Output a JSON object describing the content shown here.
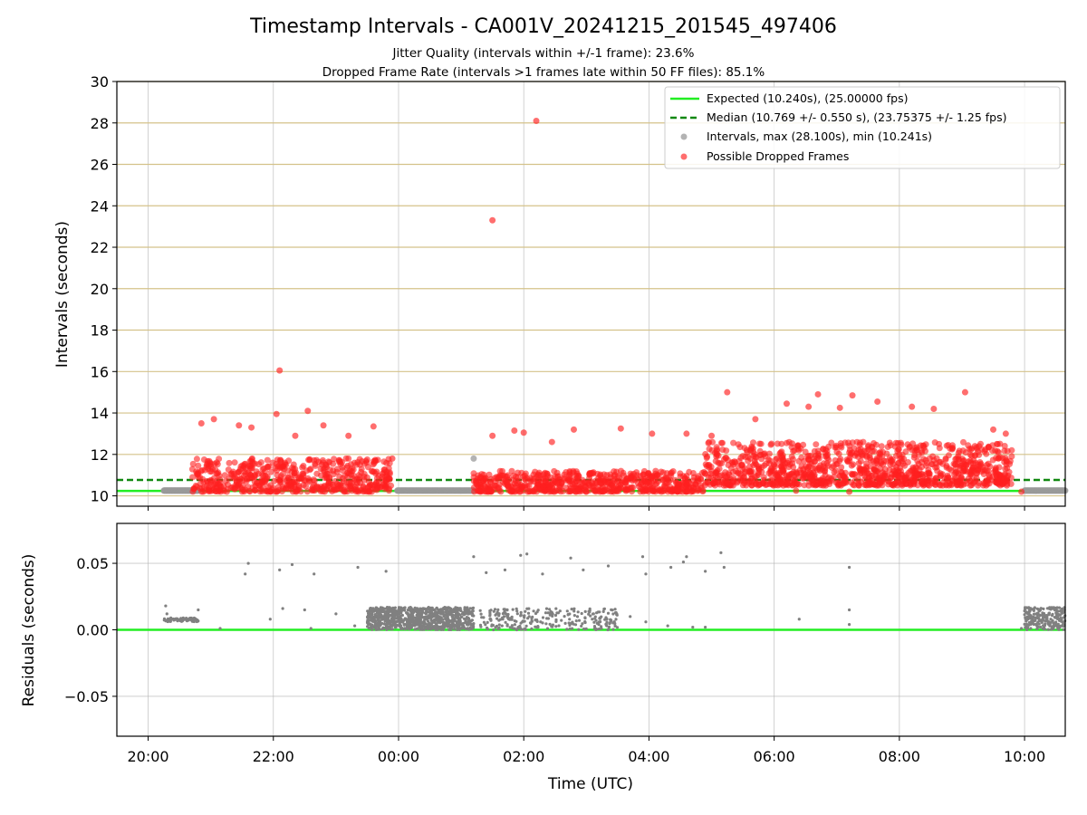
{
  "chart_data": [
    {
      "type": "scatter",
      "title": "Timestamp Intervals - CA001V_20241215_201545_497406",
      "subtitle_lines": [
        "Jitter Quality (intervals within +/-1 frame): 23.6%",
        "Dropped Frame Rate (intervals >1 frames late within 50 FF files): 85.1%"
      ],
      "xlabel": "",
      "ylabel": "Intervals (seconds)",
      "x_unit": "hours since 20:00 UTC",
      "xlim": [
        -0.5,
        14.65
      ],
      "ylim": [
        9.5,
        30
      ],
      "x_ticks": [
        0,
        2,
        4,
        6,
        8,
        10,
        12,
        14
      ],
      "y_ticks": [
        10,
        12,
        14,
        16,
        18,
        20,
        22,
        24,
        26,
        28,
        30
      ],
      "y_tick_labels": [
        "10",
        "12",
        "14",
        "16",
        "18",
        "20",
        "22",
        "24",
        "26",
        "28",
        "30"
      ],
      "grid": true,
      "legend_placement": "top-right",
      "legend": [
        {
          "label": "Expected (10.240s), (25.00000 fps)",
          "kind": "solid-line",
          "color": "#22ee22"
        },
        {
          "label": "Median (10.769 +/- 0.550 s), (23.75375 +/- 1.25 fps)",
          "kind": "dashed-line",
          "color": "#118811"
        },
        {
          "label": "Intervals, max (28.100s), min (10.241s)",
          "kind": "marker",
          "color": "#999999"
        },
        {
          "label": "Possible Dropped Frames",
          "kind": "marker",
          "color": "#ff2020"
        }
      ],
      "reference_lines": [
        {
          "name": "Expected",
          "y": 10.24,
          "style": "solid",
          "color": "#22ee22"
        },
        {
          "name": "Median",
          "y": 10.769,
          "style": "dashed",
          "color": "#118811"
        }
      ],
      "series": [
        {
          "name": "Intervals",
          "color": "#999999",
          "segments": [
            {
              "x_start": 0.25,
              "x_end": 0.8,
              "y": 10.25,
              "count": 90
            },
            {
              "x_start": 3.98,
              "x_end": 5.2,
              "y": 10.25,
              "count": 160
            },
            {
              "x_start": 14.0,
              "x_end": 14.65,
              "y": 10.25,
              "count": 80
            }
          ],
          "points": [
            {
              "x": 5.2,
              "y": 11.8
            }
          ]
        },
        {
          "name": "Possible Dropped Frames",
          "color": "#ff2020",
          "regions": [
            {
              "x_start": 0.7,
              "x_end": 3.9,
              "y_min": 10.2,
              "y_max": 11.8,
              "count": 560
            },
            {
              "x_start": 5.2,
              "x_end": 8.9,
              "y_min": 10.2,
              "y_max": 11.2,
              "count": 620
            },
            {
              "x_start": 8.9,
              "x_end": 13.8,
              "y_min": 10.5,
              "y_max": 12.6,
              "count": 1100
            }
          ],
          "outliers": [
            {
              "x": 2.1,
              "y": 16.05
            },
            {
              "x": 2.05,
              "y": 13.95
            },
            {
              "x": 2.55,
              "y": 14.1
            },
            {
              "x": 0.85,
              "y": 13.5
            },
            {
              "x": 1.05,
              "y": 13.7
            },
            {
              "x": 1.45,
              "y": 13.4
            },
            {
              "x": 1.65,
              "y": 13.3
            },
            {
              "x": 2.35,
              "y": 12.9
            },
            {
              "x": 2.8,
              "y": 13.4
            },
            {
              "x": 3.2,
              "y": 12.9
            },
            {
              "x": 3.6,
              "y": 13.35
            },
            {
              "x": 3.9,
              "y": 11.8
            },
            {
              "x": 5.5,
              "y": 23.3
            },
            {
              "x": 6.2,
              "y": 28.1
            },
            {
              "x": 5.85,
              "y": 13.15
            },
            {
              "x": 6.45,
              "y": 12.6
            },
            {
              "x": 6.8,
              "y": 13.2
            },
            {
              "x": 7.55,
              "y": 13.25
            },
            {
              "x": 8.05,
              "y": 13.0
            },
            {
              "x": 8.6,
              "y": 13.0
            },
            {
              "x": 9.0,
              "y": 12.9
            },
            {
              "x": 9.25,
              "y": 15.0
            },
            {
              "x": 9.7,
              "y": 13.7
            },
            {
              "x": 10.2,
              "y": 14.45
            },
            {
              "x": 10.55,
              "y": 14.3
            },
            {
              "x": 10.7,
              "y": 14.9
            },
            {
              "x": 11.05,
              "y": 14.25
            },
            {
              "x": 11.25,
              "y": 14.85
            },
            {
              "x": 11.65,
              "y": 14.55
            },
            {
              "x": 12.2,
              "y": 14.3
            },
            {
              "x": 12.55,
              "y": 14.2
            },
            {
              "x": 13.05,
              "y": 15.0
            },
            {
              "x": 13.5,
              "y": 13.2
            },
            {
              "x": 13.7,
              "y": 13.0
            },
            {
              "x": 11.2,
              "y": 10.2
            },
            {
              "x": 13.95,
              "y": 10.2
            },
            {
              "x": 10.35,
              "y": 10.25
            },
            {
              "x": 5.5,
              "y": 12.9
            },
            {
              "x": 6.0,
              "y": 13.05
            }
          ]
        }
      ]
    },
    {
      "type": "scatter",
      "title": "",
      "xlabel": "Time (UTC)",
      "ylabel": "Residuals (seconds)",
      "x_unit": "hours since 20:00 UTC",
      "xlim": [
        -0.5,
        14.65
      ],
      "ylim": [
        -0.08,
        0.08
      ],
      "x_ticks": [
        0,
        2,
        4,
        6,
        8,
        10,
        12,
        14
      ],
      "x_tick_labels": [
        "20:00",
        "22:00",
        "00:00",
        "02:00",
        "04:00",
        "06:00",
        "08:00",
        "10:00"
      ],
      "y_ticks": [
        -0.05,
        0.0,
        0.05
      ],
      "y_tick_labels": [
        "−0.05",
        "0.00",
        "0.05"
      ],
      "grid": true,
      "reference_lines": [
        {
          "name": "Zero",
          "y": 0.0,
          "style": "solid",
          "color": "#22ee22"
        }
      ],
      "series": [
        {
          "name": "Residuals",
          "color": "#808080",
          "bands": [
            {
              "x_start": 0.25,
              "x_end": 0.8,
              "y_min": 0.006,
              "y_max": 0.009,
              "count": 70
            },
            {
              "x_start": 3.5,
              "x_end": 5.2,
              "y_min": 0.0,
              "y_max": 0.017,
              "count": 900
            },
            {
              "x_start": 5.3,
              "x_end": 7.5,
              "y_min": 0.0,
              "y_max": 0.016,
              "count": 260
            },
            {
              "x_start": 14.0,
              "x_end": 14.65,
              "y_min": 0.0,
              "y_max": 0.017,
              "count": 220
            }
          ],
          "points": [
            {
              "x": 0.28,
              "y": 0.018
            },
            {
              "x": 0.3,
              "y": 0.012
            },
            {
              "x": 0.8,
              "y": 0.015
            },
            {
              "x": 1.15,
              "y": 0.001
            },
            {
              "x": 1.55,
              "y": 0.042
            },
            {
              "x": 1.6,
              "y": 0.05
            },
            {
              "x": 1.95,
              "y": 0.008
            },
            {
              "x": 2.1,
              "y": 0.045
            },
            {
              "x": 2.3,
              "y": 0.049
            },
            {
              "x": 2.15,
              "y": 0.016
            },
            {
              "x": 2.65,
              "y": 0.042
            },
            {
              "x": 2.6,
              "y": 0.001
            },
            {
              "x": 2.5,
              "y": 0.015
            },
            {
              "x": 3.35,
              "y": 0.047
            },
            {
              "x": 3.8,
              "y": 0.044
            },
            {
              "x": 3.3,
              "y": 0.003
            },
            {
              "x": 3.0,
              "y": 0.012
            },
            {
              "x": 5.2,
              "y": 0.055
            },
            {
              "x": 5.4,
              "y": 0.043
            },
            {
              "x": 5.7,
              "y": 0.045
            },
            {
              "x": 5.95,
              "y": 0.056
            },
            {
              "x": 6.05,
              "y": 0.057
            },
            {
              "x": 6.3,
              "y": 0.042
            },
            {
              "x": 6.75,
              "y": 0.054
            },
            {
              "x": 6.95,
              "y": 0.045
            },
            {
              "x": 7.35,
              "y": 0.048
            },
            {
              "x": 7.9,
              "y": 0.055
            },
            {
              "x": 7.95,
              "y": 0.042
            },
            {
              "x": 8.35,
              "y": 0.047
            },
            {
              "x": 8.55,
              "y": 0.051
            },
            {
              "x": 8.6,
              "y": 0.055
            },
            {
              "x": 8.9,
              "y": 0.044
            },
            {
              "x": 9.15,
              "y": 0.058
            },
            {
              "x": 9.2,
              "y": 0.047
            },
            {
              "x": 7.7,
              "y": 0.01
            },
            {
              "x": 7.95,
              "y": 0.006
            },
            {
              "x": 8.3,
              "y": 0.003
            },
            {
              "x": 8.7,
              "y": 0.002
            },
            {
              "x": 8.9,
              "y": 0.002
            },
            {
              "x": 10.4,
              "y": 0.008
            },
            {
              "x": 11.2,
              "y": 0.047
            },
            {
              "x": 11.2,
              "y": 0.015
            },
            {
              "x": 11.2,
              "y": 0.004
            },
            {
              "x": 13.95,
              "y": 0.001
            }
          ]
        }
      ]
    }
  ]
}
